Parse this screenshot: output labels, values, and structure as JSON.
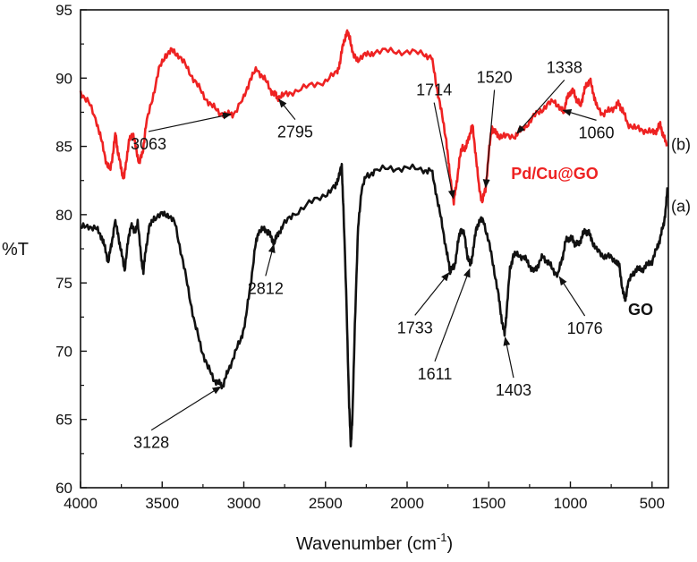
{
  "chart_data": {
    "type": "line",
    "title": "",
    "xlabel": "Wavenumber (cm",
    "xlabel_sup": "-1",
    "xlabel_end": ")",
    "ylabel": "%T",
    "xlim": [
      4000,
      400
    ],
    "ylim": [
      60,
      95
    ],
    "x_reversed": true,
    "grid": false,
    "x_ticks": [
      4000,
      3500,
      3000,
      2500,
      2000,
      1500,
      1000,
      500
    ],
    "y_ticks": [
      60,
      65,
      70,
      75,
      80,
      85,
      90,
      95
    ],
    "series": [
      {
        "name": "Pd/Cu@GO",
        "tag": "(b)",
        "color": "#ee2222",
        "points": [
          [
            4000,
            89.0
          ],
          [
            3950,
            88.2
          ],
          [
            3900,
            86.8
          ],
          [
            3870,
            85.3
          ],
          [
            3840,
            83.8
          ],
          [
            3820,
            83.2
          ],
          [
            3800,
            84.6
          ],
          [
            3785,
            86.0
          ],
          [
            3770,
            84.4
          ],
          [
            3750,
            83.4
          ],
          [
            3735,
            82.5
          ],
          [
            3720,
            84.0
          ],
          [
            3700,
            85.5
          ],
          [
            3680,
            86.0
          ],
          [
            3660,
            84.8
          ],
          [
            3640,
            83.8
          ],
          [
            3620,
            84.5
          ],
          [
            3600,
            86.5
          ],
          [
            3560,
            88.5
          ],
          [
            3520,
            90.6
          ],
          [
            3480,
            91.7
          ],
          [
            3440,
            92.0
          ],
          [
            3400,
            91.7
          ],
          [
            3350,
            90.8
          ],
          [
            3300,
            89.8
          ],
          [
            3250,
            88.8
          ],
          [
            3200,
            88.0
          ],
          [
            3150,
            87.5
          ],
          [
            3100,
            87.3
          ],
          [
            3063,
            87.4
          ],
          [
            3000,
            88.5
          ],
          [
            2960,
            90.0
          ],
          [
            2920,
            90.6
          ],
          [
            2880,
            90.1
          ],
          [
            2840,
            89.2
          ],
          [
            2810,
            88.8
          ],
          [
            2795,
            88.6
          ],
          [
            2760,
            88.7
          ],
          [
            2700,
            89.0
          ],
          [
            2600,
            89.4
          ],
          [
            2500,
            89.8
          ],
          [
            2430,
            90.4
          ],
          [
            2410,
            91.2
          ],
          [
            2390,
            92.6
          ],
          [
            2370,
            93.3
          ],
          [
            2350,
            93.0
          ],
          [
            2330,
            91.6
          ],
          [
            2300,
            91.4
          ],
          [
            2250,
            91.7
          ],
          [
            2200,
            91.9
          ],
          [
            2100,
            92.0
          ],
          [
            2000,
            91.9
          ],
          [
            1900,
            91.8
          ],
          [
            1850,
            91.5
          ],
          [
            1820,
            89.5
          ],
          [
            1790,
            87.5
          ],
          [
            1760,
            85.5
          ],
          [
            1740,
            83.0
          ],
          [
            1714,
            81.0
          ],
          [
            1700,
            82.0
          ],
          [
            1680,
            84.0
          ],
          [
            1660,
            85.0
          ],
          [
            1640,
            84.8
          ],
          [
            1620,
            85.8
          ],
          [
            1600,
            86.5
          ],
          [
            1580,
            84.5
          ],
          [
            1560,
            82.0
          ],
          [
            1540,
            81.0
          ],
          [
            1520,
            81.8
          ],
          [
            1500,
            84.5
          ],
          [
            1480,
            86.4
          ],
          [
            1460,
            86.0
          ],
          [
            1440,
            85.8
          ],
          [
            1400,
            85.7
          ],
          [
            1338,
            85.8
          ],
          [
            1300,
            86.2
          ],
          [
            1250,
            86.8
          ],
          [
            1200,
            87.5
          ],
          [
            1150,
            87.9
          ],
          [
            1100,
            88.4
          ],
          [
            1060,
            87.7
          ],
          [
            1040,
            87.6
          ],
          [
            1020,
            88.5
          ],
          [
            1000,
            89.0
          ],
          [
            980,
            89.0
          ],
          [
            960,
            88.4
          ],
          [
            940,
            88.0
          ],
          [
            920,
            88.8
          ],
          [
            900,
            89.6
          ],
          [
            880,
            89.8
          ],
          [
            860,
            89.0
          ],
          [
            840,
            87.9
          ],
          [
            800,
            87.4
          ],
          [
            760,
            87.6
          ],
          [
            720,
            88.0
          ],
          [
            700,
            88.1
          ],
          [
            680,
            87.6
          ],
          [
            650,
            86.7
          ],
          [
            600,
            86.3
          ],
          [
            550,
            86.2
          ],
          [
            500,
            86.0
          ],
          [
            470,
            86.2
          ],
          [
            450,
            86.6
          ],
          [
            430,
            85.8
          ],
          [
            410,
            85.0
          ]
        ]
      },
      {
        "name": "GO",
        "tag": "(a)",
        "color": "#111111",
        "points": [
          [
            4000,
            79.0
          ],
          [
            3950,
            79.2
          ],
          [
            3900,
            78.9
          ],
          [
            3870,
            78.4
          ],
          [
            3850,
            77.5
          ],
          [
            3830,
            76.6
          ],
          [
            3810,
            77.8
          ],
          [
            3790,
            79.5
          ],
          [
            3770,
            78.6
          ],
          [
            3750,
            77.2
          ],
          [
            3730,
            76.0
          ],
          [
            3710,
            77.9
          ],
          [
            3690,
            79.4
          ],
          [
            3670,
            78.6
          ],
          [
            3650,
            79.5
          ],
          [
            3630,
            77.0
          ],
          [
            3615,
            75.8
          ],
          [
            3600,
            77.5
          ],
          [
            3580,
            79.0
          ],
          [
            3550,
            79.8
          ],
          [
            3500,
            80.0
          ],
          [
            3460,
            80.0
          ],
          [
            3420,
            79.3
          ],
          [
            3380,
            77.0
          ],
          [
            3340,
            74.5
          ],
          [
            3300,
            72.0
          ],
          [
            3260,
            70.2
          ],
          [
            3220,
            68.8
          ],
          [
            3180,
            67.9
          ],
          [
            3150,
            67.6
          ],
          [
            3128,
            67.5
          ],
          [
            3100,
            68.4
          ],
          [
            3060,
            69.7
          ],
          [
            3020,
            70.8
          ],
          [
            2990,
            72.2
          ],
          [
            2960,
            74.8
          ],
          [
            2930,
            77.6
          ],
          [
            2910,
            78.8
          ],
          [
            2880,
            78.9
          ],
          [
            2850,
            78.8
          ],
          [
            2830,
            78.2
          ],
          [
            2812,
            78.0
          ],
          [
            2790,
            78.6
          ],
          [
            2760,
            79.2
          ],
          [
            2700,
            80.0
          ],
          [
            2600,
            80.8
          ],
          [
            2500,
            81.5
          ],
          [
            2440,
            82.0
          ],
          [
            2420,
            82.8
          ],
          [
            2400,
            83.5
          ],
          [
            2390,
            80.5
          ],
          [
            2370,
            73.0
          ],
          [
            2355,
            66.0
          ],
          [
            2345,
            63.2
          ],
          [
            2335,
            65.0
          ],
          [
            2320,
            72.0
          ],
          [
            2300,
            79.0
          ],
          [
            2280,
            81.8
          ],
          [
            2250,
            82.8
          ],
          [
            2200,
            83.2
          ],
          [
            2100,
            83.4
          ],
          [
            2000,
            83.4
          ],
          [
            1900,
            83.3
          ],
          [
            1850,
            83.2
          ],
          [
            1820,
            81.5
          ],
          [
            1790,
            79.5
          ],
          [
            1760,
            77.5
          ],
          [
            1740,
            76.0
          ],
          [
            1733,
            75.9
          ],
          [
            1710,
            76.2
          ],
          [
            1690,
            77.8
          ],
          [
            1670,
            79.0
          ],
          [
            1650,
            78.5
          ],
          [
            1630,
            77.0
          ],
          [
            1611,
            76.2
          ],
          [
            1595,
            77.5
          ],
          [
            1575,
            79.0
          ],
          [
            1555,
            79.6
          ],
          [
            1530,
            79.5
          ],
          [
            1500,
            78.0
          ],
          [
            1470,
            76.2
          ],
          [
            1440,
            74.0
          ],
          [
            1420,
            72.3
          ],
          [
            1403,
            71.2
          ],
          [
            1390,
            73.0
          ],
          [
            1370,
            76.0
          ],
          [
            1350,
            77.0
          ],
          [
            1320,
            77.1
          ],
          [
            1280,
            76.8
          ],
          [
            1250,
            76.3
          ],
          [
            1220,
            75.8
          ],
          [
            1200,
            76.3
          ],
          [
            1170,
            76.9
          ],
          [
            1140,
            76.6
          ],
          [
            1110,
            76.0
          ],
          [
            1076,
            75.6
          ],
          [
            1050,
            76.8
          ],
          [
            1030,
            78.0
          ],
          [
            1010,
            78.3
          ],
          [
            990,
            78.2
          ],
          [
            970,
            77.9
          ],
          [
            950,
            77.8
          ],
          [
            930,
            78.4
          ],
          [
            910,
            78.8
          ],
          [
            890,
            78.7
          ],
          [
            870,
            78.2
          ],
          [
            840,
            77.4
          ],
          [
            800,
            77.0
          ],
          [
            760,
            76.9
          ],
          [
            720,
            76.6
          ],
          [
            700,
            76.2
          ],
          [
            680,
            74.5
          ],
          [
            665,
            73.7
          ],
          [
            650,
            74.8
          ],
          [
            620,
            75.7
          ],
          [
            590,
            76.0
          ],
          [
            560,
            76.0
          ],
          [
            530,
            76.3
          ],
          [
            500,
            76.6
          ],
          [
            470,
            77.5
          ],
          [
            450,
            78.3
          ],
          [
            430,
            79.2
          ],
          [
            415,
            80.5
          ],
          [
            405,
            82.0
          ]
        ]
      }
    ],
    "annotations": [
      {
        "label": "3063",
        "series": "Pd/Cu@GO",
        "x": 3063
      },
      {
        "label": "2795",
        "series": "Pd/Cu@GO",
        "x": 2795
      },
      {
        "label": "1714",
        "series": "Pd/Cu@GO",
        "x": 1714
      },
      {
        "label": "1520",
        "series": "Pd/Cu@GO",
        "x": 1520
      },
      {
        "label": "1338",
        "series": "Pd/Cu@GO",
        "x": 1338
      },
      {
        "label": "1060",
        "series": "Pd/Cu@GO",
        "x": 1060
      },
      {
        "label": "3128",
        "series": "GO",
        "x": 3128
      },
      {
        "label": "2812",
        "series": "GO",
        "x": 2812
      },
      {
        "label": "1733",
        "series": "GO",
        "x": 1733
      },
      {
        "label": "1611",
        "series": "GO",
        "x": 1611
      },
      {
        "label": "1403",
        "series": "GO",
        "x": 1403
      },
      {
        "label": "1076",
        "series": "GO",
        "x": 1076
      }
    ]
  }
}
